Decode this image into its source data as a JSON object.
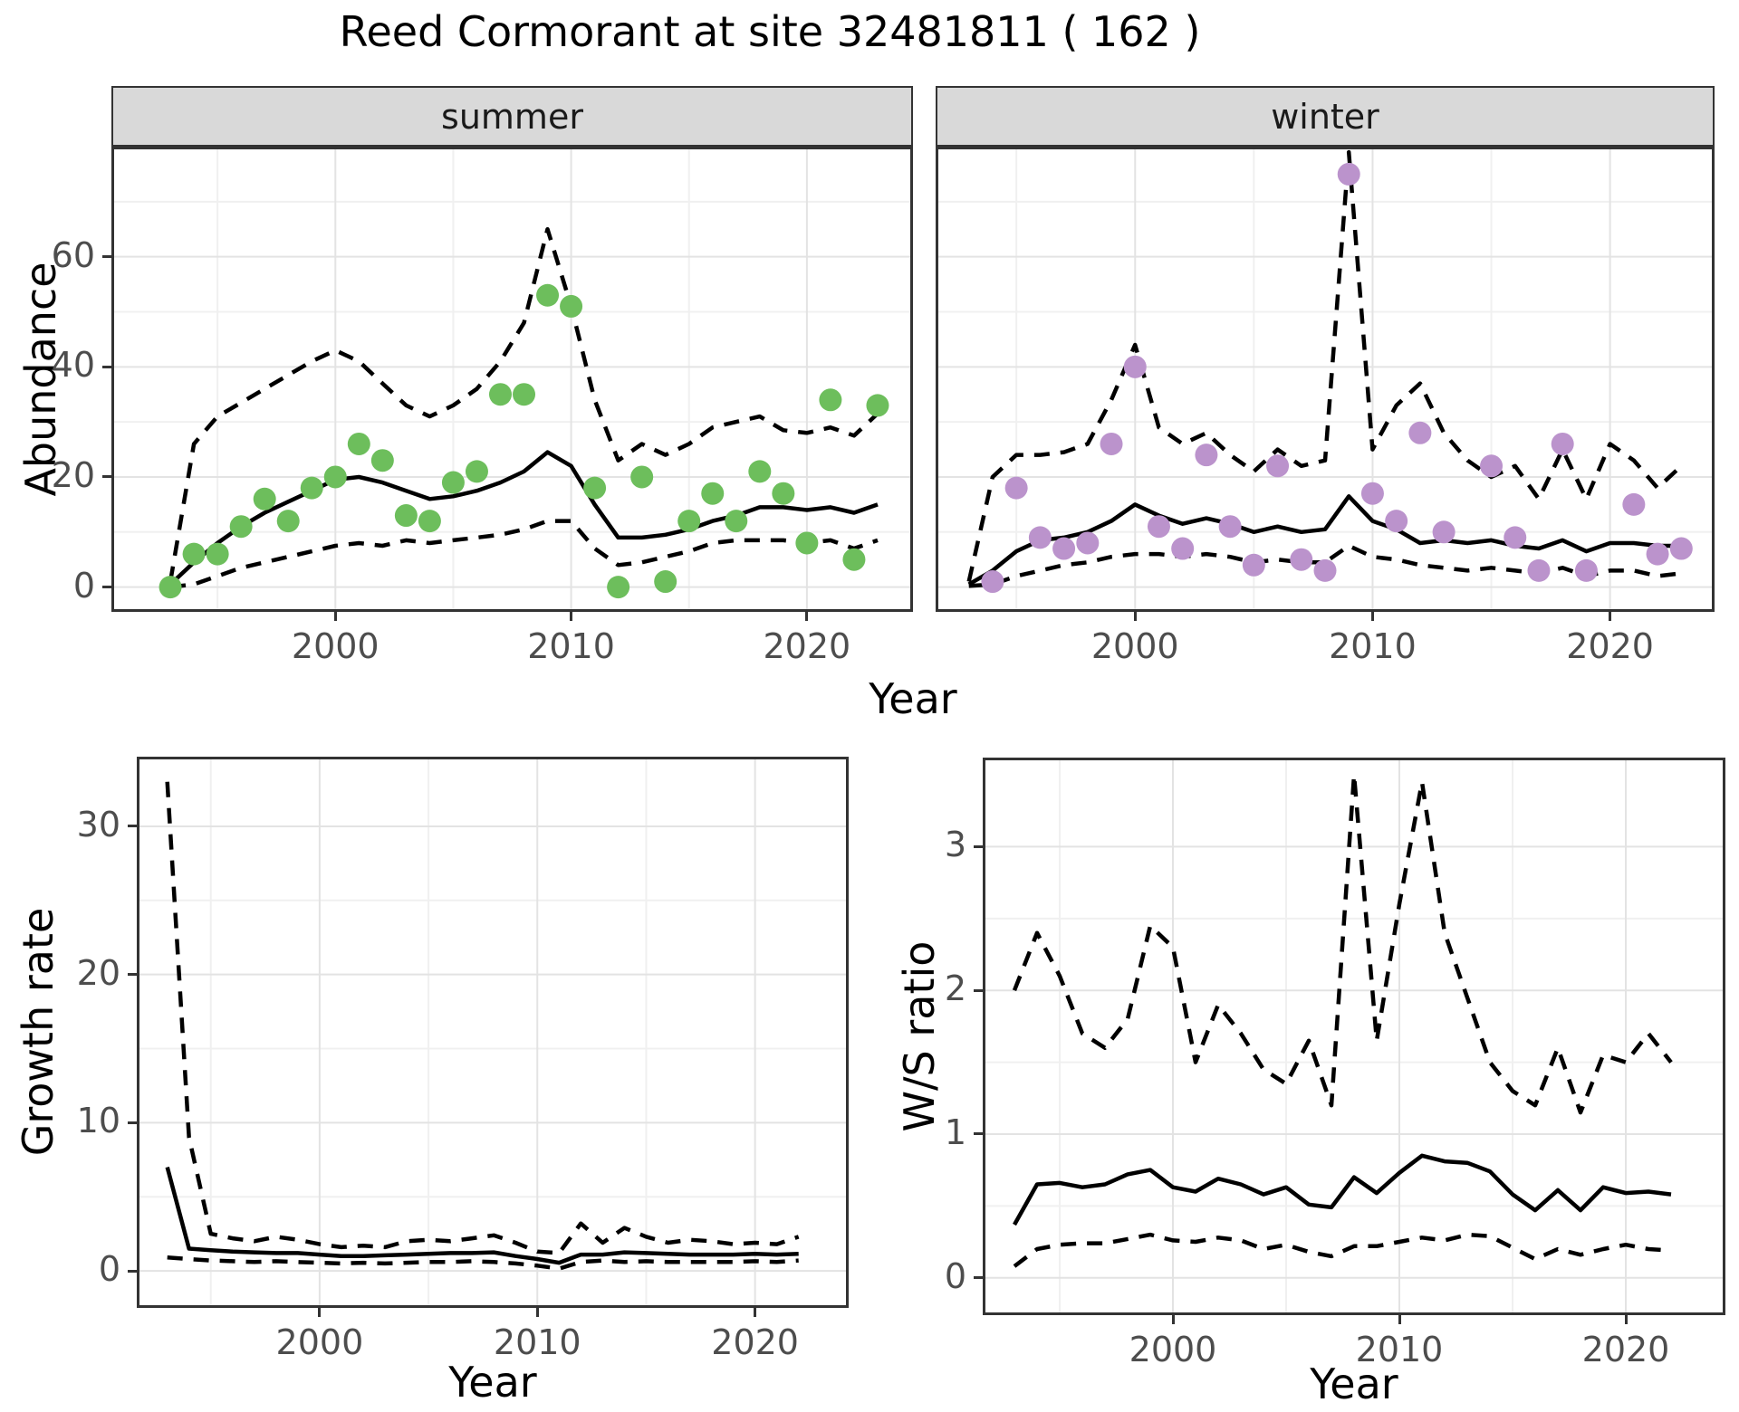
{
  "title": "Reed Cormorant at site 32481811 ( 162 )",
  "axis_titles": {
    "abundance": "Abundance",
    "growth_rate": "Growth rate",
    "ws_ratio": "W/S ratio",
    "year": "Year"
  },
  "facets": [
    {
      "label": "summer"
    },
    {
      "label": "winter"
    }
  ],
  "colors": {
    "summer_point": "#6dbe5c",
    "winter_point": "#bb93cc",
    "line": "#000000",
    "grid_major": "#e3e3e3",
    "grid_minor": "#f0f0f0",
    "panel_border": "#333333",
    "strip_bg": "#d9d9d9",
    "tick_text": "#4d4d4d"
  },
  "chart_data": [
    {
      "id": "abundance-summer",
      "type": "line+scatter",
      "facet_label": "summer",
      "xlabel": "Year",
      "ylabel": "Abundance",
      "xlim": [
        1990.5,
        2024.5
      ],
      "ylim": [
        -4.5,
        80
      ],
      "xticks": [
        2000,
        2010,
        2020
      ],
      "xminor": [
        1995,
        2005,
        2015
      ],
      "yticks": [
        0,
        20,
        40,
        60
      ],
      "yminor": [
        10,
        30,
        50,
        70
      ],
      "legend_position": "none",
      "point_color": "#6dbe5c",
      "years": [
        1993,
        1994,
        1995,
        1996,
        1997,
        1998,
        1999,
        2000,
        2001,
        2002,
        2003,
        2004,
        2005,
        2006,
        2007,
        2008,
        2009,
        2010,
        2011,
        2012,
        2013,
        2014,
        2015,
        2016,
        2017,
        2018,
        2019,
        2020,
        2021,
        2022,
        2023
      ],
      "observed": [
        0,
        6,
        6,
        11,
        16,
        12,
        18,
        20,
        26,
        23,
        13,
        12,
        19,
        21,
        35,
        35,
        53,
        51,
        18,
        0,
        20,
        1,
        12,
        17,
        12,
        21,
        17,
        8,
        34,
        5,
        33
      ],
      "series": {
        "mean": [
          0.5,
          4.5,
          8,
          11,
          13.5,
          15.5,
          17.5,
          19.5,
          20,
          19,
          17.5,
          16,
          16.5,
          17.5,
          19,
          21,
          24.5,
          22,
          15,
          9,
          9,
          9.5,
          10.5,
          12,
          13,
          14.5,
          14.5,
          14,
          14.5,
          13.5,
          15
        ],
        "upper_ci": [
          1,
          26,
          31,
          33.5,
          36,
          38.5,
          41,
          43,
          41,
          37,
          33,
          31,
          33,
          36,
          41,
          48,
          65,
          51,
          34,
          23,
          26,
          24,
          26,
          29,
          30,
          31,
          28.5,
          28,
          29,
          27.5,
          31.5
        ],
        "lower_ci": [
          0,
          0.5,
          2,
          3.5,
          4.5,
          5.5,
          6.5,
          7.5,
          8,
          7.5,
          8.5,
          8,
          8.5,
          9,
          9.5,
          10.5,
          12,
          12,
          7,
          4,
          4.5,
          5.5,
          6.5,
          8,
          8.5,
          8.5,
          8.5,
          8,
          8.5,
          7,
          8.5
        ]
      }
    },
    {
      "id": "abundance-winter",
      "type": "line+scatter",
      "facet_label": "winter",
      "xlabel": "Year",
      "ylabel": "Abundance",
      "xlim": [
        1991.6,
        2024.4
      ],
      "ylim": [
        -4.5,
        80
      ],
      "xticks": [
        2000,
        2010,
        2020
      ],
      "xminor": [
        1995,
        2005,
        2015
      ],
      "yticks": [
        0,
        20,
        40,
        60
      ],
      "yminor": [
        10,
        30,
        50,
        70
      ],
      "legend_position": "none",
      "point_color": "#bb93cc",
      "years": [
        1993,
        1994,
        1995,
        1996,
        1997,
        1998,
        1999,
        2000,
        2001,
        2002,
        2003,
        2004,
        2005,
        2006,
        2007,
        2008,
        2009,
        2010,
        2011,
        2012,
        2013,
        2014,
        2015,
        2016,
        2017,
        2018,
        2019,
        2020,
        2021,
        2022,
        2023
      ],
      "observed": [
        null,
        1,
        18,
        9,
        7,
        8,
        26,
        40,
        11,
        7,
        24,
        11,
        4,
        22,
        5,
        3,
        75,
        17,
        12,
        28,
        10,
        null,
        22,
        9,
        3,
        26,
        3,
        null,
        15,
        6,
        7
      ],
      "series": {
        "mean": [
          0.5,
          3,
          6.5,
          8.5,
          9,
          10,
          12,
          15,
          13,
          11.5,
          12.5,
          11.5,
          10,
          11,
          10,
          10.5,
          16.5,
          12,
          10.5,
          8,
          8.5,
          8,
          8.5,
          7.5,
          7,
          8.5,
          6.5,
          8,
          8,
          7.5,
          7.5
        ],
        "upper_ci": [
          1,
          20,
          24,
          24,
          24.5,
          26,
          34,
          44,
          29,
          26,
          28,
          24,
          21,
          25,
          22,
          23,
          79,
          25,
          33,
          37,
          28,
          23,
          20,
          22,
          16,
          25,
          16,
          26,
          23,
          18,
          22
        ],
        "lower_ci": [
          0.2,
          0.5,
          2,
          3,
          4,
          4.5,
          5.5,
          6,
          6,
          5.5,
          6,
          5.5,
          4.5,
          5,
          4.5,
          4.5,
          7.5,
          5.5,
          5,
          4,
          3.5,
          3,
          3.5,
          3,
          2.5,
          3.5,
          2,
          3,
          3,
          2,
          2.5
        ]
      }
    },
    {
      "id": "growth-rate",
      "type": "line",
      "facet_label": "",
      "xlabel": "Year",
      "ylabel": "Growth rate",
      "xlim": [
        1991.6,
        2024.3
      ],
      "ylim": [
        -2.5,
        34.7
      ],
      "xticks": [
        2000,
        2010,
        2020
      ],
      "xminor": [
        1995,
        2005,
        2015
      ],
      "yticks": [
        0,
        10,
        20,
        30
      ],
      "yminor": [
        5,
        15,
        25
      ],
      "legend_position": "none",
      "point_color": null,
      "years": [
        1993,
        1994,
        1995,
        1996,
        1997,
        1998,
        1999,
        2000,
        2001,
        2002,
        2003,
        2004,
        2005,
        2006,
        2007,
        2008,
        2009,
        2010,
        2011,
        2012,
        2013,
        2014,
        2015,
        2016,
        2017,
        2018,
        2019,
        2020,
        2021,
        2022
      ],
      "observed": null,
      "series": {
        "mean": [
          7,
          1.5,
          1.4,
          1.3,
          1.25,
          1.2,
          1.2,
          1.1,
          1,
          1,
          1.05,
          1.1,
          1.15,
          1.2,
          1.2,
          1.25,
          1,
          0.8,
          0.55,
          1.1,
          1.1,
          1.25,
          1.2,
          1.15,
          1.1,
          1.1,
          1.1,
          1.15,
          1.1,
          1.15
        ],
        "upper_ci": [
          33,
          9,
          2.5,
          2.2,
          2,
          2.3,
          2.1,
          1.8,
          1.6,
          1.7,
          1.6,
          2,
          2.1,
          2,
          2.2,
          2.4,
          1.9,
          1.3,
          1.2,
          3.2,
          1.9,
          2.9,
          2.3,
          1.9,
          2.1,
          2,
          1.8,
          1.9,
          1.8,
          2.3
        ],
        "lower_ci": [
          0.9,
          0.8,
          0.7,
          0.65,
          0.6,
          0.65,
          0.6,
          0.55,
          0.5,
          0.55,
          0.5,
          0.55,
          0.6,
          0.6,
          0.65,
          0.6,
          0.5,
          0.35,
          0.15,
          0.6,
          0.7,
          0.6,
          0.65,
          0.6,
          0.6,
          0.6,
          0.6,
          0.65,
          0.6,
          0.7
        ]
      }
    },
    {
      "id": "ws-ratio",
      "type": "line",
      "facet_label": "",
      "xlabel": "Year",
      "ylabel": "W/S ratio",
      "xlim": [
        1991.6,
        2024.4
      ],
      "ylim": [
        -0.26,
        3.62
      ],
      "xticks": [
        2000,
        2010,
        2020
      ],
      "xminor": [
        1995,
        2005,
        2015
      ],
      "yticks": [
        0,
        1,
        2,
        3
      ],
      "yminor": [
        0.5,
        1.5,
        2.5
      ],
      "legend_position": "none",
      "point_color": null,
      "years": [
        1993,
        1994,
        1995,
        1996,
        1997,
        1998,
        1999,
        2000,
        2001,
        2002,
        2003,
        2004,
        2005,
        2006,
        2007,
        2008,
        2009,
        2010,
        2011,
        2012,
        2013,
        2014,
        2015,
        2016,
        2017,
        2018,
        2019,
        2020,
        2021,
        2022
      ],
      "observed": null,
      "series": {
        "mean": [
          0.37,
          0.65,
          0.66,
          0.63,
          0.65,
          0.72,
          0.75,
          0.63,
          0.6,
          0.69,
          0.65,
          0.58,
          0.63,
          0.51,
          0.49,
          0.7,
          0.59,
          0.73,
          0.85,
          0.81,
          0.8,
          0.74,
          0.58,
          0.47,
          0.61,
          0.47,
          0.63,
          0.59,
          0.6,
          0.58
        ],
        "upper_ci": [
          2,
          2.4,
          2.1,
          1.7,
          1.6,
          1.8,
          2.45,
          2.3,
          1.5,
          1.9,
          1.7,
          1.45,
          1.35,
          1.65,
          1.2,
          3.5,
          1.65,
          2.6,
          3.45,
          2.4,
          1.95,
          1.5,
          1.3,
          1.2,
          1.6,
          1.15,
          1.55,
          1.5,
          1.7,
          1.5
        ],
        "lower_ci": [
          0.08,
          0.2,
          0.23,
          0.24,
          0.24,
          0.27,
          0.3,
          0.26,
          0.25,
          0.28,
          0.26,
          0.2,
          0.23,
          0.18,
          0.15,
          0.22,
          0.22,
          0.25,
          0.28,
          0.26,
          0.3,
          0.29,
          0.21,
          0.13,
          0.2,
          0.16,
          0.2,
          0.23,
          0.2,
          0.19
        ]
      }
    }
  ]
}
